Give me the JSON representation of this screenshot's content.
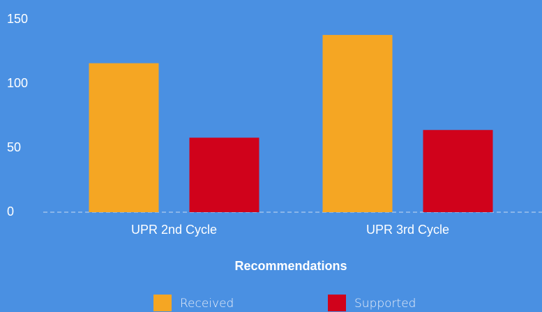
{
  "chart_data": {
    "type": "bar",
    "xlabel": "Recommendations",
    "categories": [
      "UPR 2nd Cycle",
      "UPR 3rd Cycle"
    ],
    "series": [
      {
        "name": "Received",
        "color": "#f5a623",
        "values": [
          116,
          138
        ]
      },
      {
        "name": "Supported",
        "color": "#d0021b",
        "values": [
          58,
          64
        ]
      }
    ],
    "ylim": [
      0,
      150
    ],
    "yticks": [
      0,
      50,
      100,
      150
    ],
    "grid": false,
    "legend": "bottom"
  }
}
